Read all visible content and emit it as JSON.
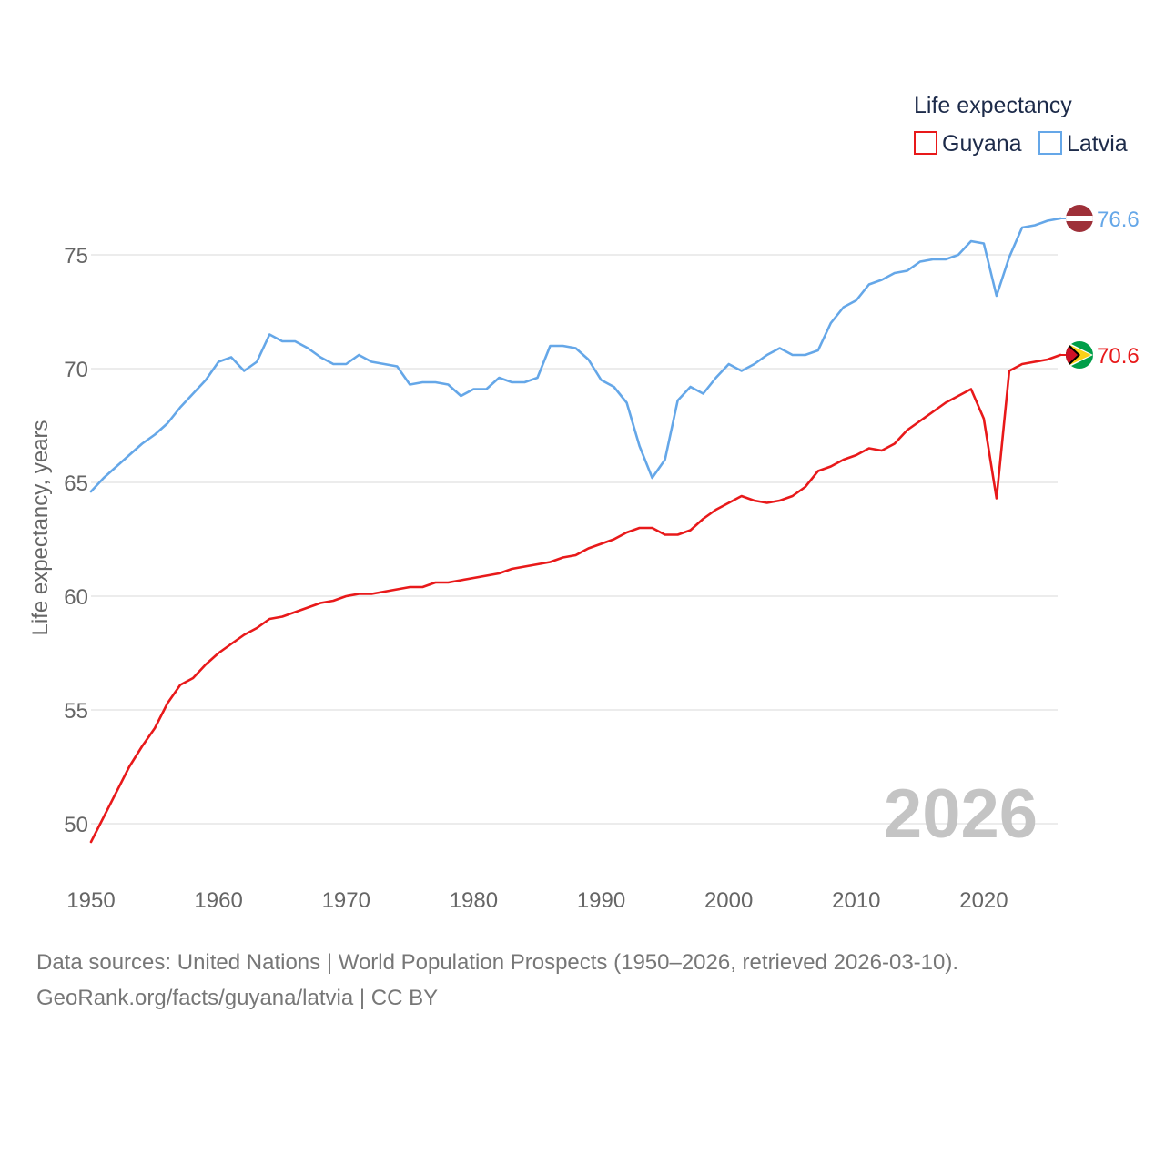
{
  "chart_data": {
    "type": "line",
    "title": "",
    "legend_title": "Life expectancy",
    "ylabel": "Life expectancy, years",
    "xlabel": "",
    "xlim": [
      1950,
      2026
    ],
    "ylim": [
      48.2,
      78.6
    ],
    "x_ticks": [
      1950,
      1960,
      1970,
      1980,
      1990,
      2000,
      2010,
      2020
    ],
    "y_ticks": [
      50,
      55,
      60,
      65,
      70,
      75
    ],
    "grid": true,
    "legend_position": "top-right",
    "current_year": "2026",
    "x": [
      1950,
      1951,
      1952,
      1953,
      1954,
      1955,
      1956,
      1957,
      1958,
      1959,
      1960,
      1961,
      1962,
      1963,
      1964,
      1965,
      1966,
      1967,
      1968,
      1969,
      1970,
      1971,
      1972,
      1973,
      1974,
      1975,
      1976,
      1977,
      1978,
      1979,
      1980,
      1981,
      1982,
      1983,
      1984,
      1985,
      1986,
      1987,
      1988,
      1989,
      1990,
      1991,
      1992,
      1993,
      1994,
      1995,
      1996,
      1997,
      1998,
      1999,
      2000,
      2001,
      2002,
      2003,
      2004,
      2005,
      2006,
      2007,
      2008,
      2009,
      2010,
      2011,
      2012,
      2013,
      2014,
      2015,
      2016,
      2017,
      2018,
      2019,
      2020,
      2021,
      2022,
      2023,
      2024,
      2025,
      2026
    ],
    "series": [
      {
        "name": "Guyana",
        "color": "#e8191a",
        "flag": "guyana-flag-icon",
        "end_label": "70.6",
        "values": [
          49.2,
          50.3,
          51.4,
          52.5,
          53.4,
          54.2,
          55.3,
          56.1,
          56.4,
          57.0,
          57.5,
          57.9,
          58.3,
          58.6,
          59.0,
          59.1,
          59.3,
          59.5,
          59.7,
          59.8,
          60.0,
          60.1,
          60.1,
          60.2,
          60.3,
          60.4,
          60.4,
          60.6,
          60.6,
          60.7,
          60.8,
          60.9,
          61.0,
          61.2,
          61.3,
          61.4,
          61.5,
          61.7,
          61.8,
          62.1,
          62.3,
          62.5,
          62.8,
          63.0,
          63.0,
          62.7,
          62.7,
          62.9,
          63.4,
          63.8,
          64.1,
          64.4,
          64.2,
          64.1,
          64.2,
          64.4,
          64.8,
          65.5,
          65.7,
          66.0,
          66.2,
          66.5,
          66.4,
          66.7,
          67.3,
          67.7,
          68.1,
          68.5,
          68.8,
          69.1,
          67.8,
          64.3,
          69.9,
          70.2,
          70.3,
          70.4,
          70.6
        ]
      },
      {
        "name": "Latvia",
        "color": "#65a7e8",
        "flag": "latvia-flag-icon",
        "end_label": "76.6",
        "values": [
          64.6,
          65.2,
          65.7,
          66.2,
          66.7,
          67.1,
          67.6,
          68.3,
          68.9,
          69.5,
          70.3,
          70.5,
          69.9,
          70.3,
          71.5,
          71.2,
          71.2,
          70.9,
          70.5,
          70.2,
          70.2,
          70.6,
          70.3,
          70.2,
          70.1,
          69.3,
          69.4,
          69.4,
          69.3,
          68.8,
          69.1,
          69.1,
          69.6,
          69.4,
          69.4,
          69.6,
          71.0,
          71.0,
          70.9,
          70.4,
          69.5,
          69.2,
          68.5,
          66.6,
          65.2,
          66.0,
          68.6,
          69.2,
          68.9,
          69.6,
          70.2,
          69.9,
          70.2,
          70.6,
          70.9,
          70.6,
          70.6,
          70.8,
          72.0,
          72.7,
          73.0,
          73.7,
          73.9,
          74.2,
          74.3,
          74.7,
          74.8,
          74.8,
          75.0,
          75.6,
          75.5,
          73.2,
          74.9,
          76.2,
          76.3,
          76.5,
          76.6
        ]
      }
    ]
  },
  "footer": {
    "sources": "Data sources: United Nations | World Population Prospects (1950–2026, retrieved 2026-03-10).",
    "attribution": "GeoRank.org/facts/guyana/latvia | CC BY"
  }
}
